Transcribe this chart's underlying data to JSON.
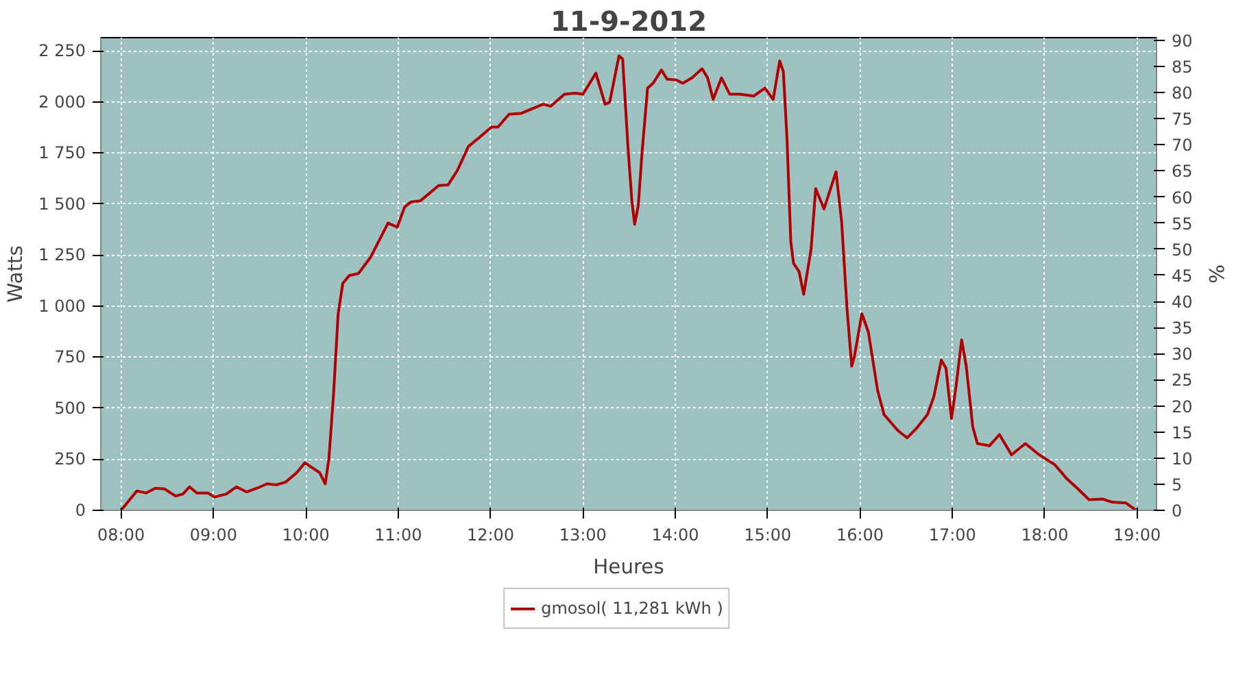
{
  "chart_data": {
    "type": "line",
    "title": "11-9-2012",
    "xlabel": "Heures",
    "ylabel": "Watts",
    "y2label": "%",
    "x": [
      8.0,
      8.17,
      8.27,
      8.37,
      8.47,
      8.59,
      8.67,
      8.74,
      8.82,
      8.94,
      9.01,
      9.14,
      9.25,
      9.36,
      9.48,
      9.58,
      9.68,
      9.78,
      9.9,
      9.99,
      10.15,
      10.21,
      10.25,
      10.3,
      10.35,
      10.4,
      10.47,
      10.57,
      10.7,
      10.79,
      10.89,
      10.99,
      11.07,
      11.14,
      11.24,
      11.44,
      11.54,
      11.64,
      11.76,
      11.88,
      12.01,
      12.08,
      12.2,
      12.33,
      12.43,
      12.57,
      12.65,
      12.8,
      12.92,
      13.0,
      13.14,
      13.24,
      13.29,
      13.39,
      13.43,
      13.49,
      13.53,
      13.56,
      13.6,
      13.64,
      13.7,
      13.76,
      13.85,
      13.91,
      14.01,
      14.08,
      14.18,
      14.29,
      14.35,
      14.41,
      14.5,
      14.59,
      14.7,
      14.85,
      14.97,
      15.06,
      15.13,
      15.17,
      15.21,
      15.25,
      15.28,
      15.34,
      15.39,
      15.47,
      15.52,
      15.61,
      15.74,
      15.8,
      15.86,
      15.91,
      15.94,
      16.02,
      16.09,
      16.19,
      16.26,
      16.41,
      16.51,
      16.61,
      16.73,
      16.8,
      16.88,
      16.93,
      16.99,
      17.04,
      17.1,
      17.15,
      17.22,
      17.27,
      17.4,
      17.51,
      17.64,
      17.79,
      17.94,
      18.11,
      18.24,
      18.36,
      18.48,
      18.63,
      18.73,
      18.88,
      18.99
    ],
    "series": [
      {
        "name": "gmosol( 11,281 kWh )",
        "color": "#b00000",
        "values": [
          0,
          95,
          85,
          108,
          105,
          70,
          80,
          115,
          85,
          85,
          65,
          80,
          115,
          90,
          110,
          130,
          125,
          138,
          184,
          233,
          184,
          130,
          253,
          568,
          963,
          1111,
          1150,
          1160,
          1239,
          1318,
          1407,
          1387,
          1486,
          1511,
          1516,
          1591,
          1594,
          1664,
          1782,
          1827,
          1877,
          1877,
          1940,
          1944,
          1963,
          1989,
          1979,
          2038,
          2043,
          2038,
          2141,
          1989,
          1999,
          2226,
          2210,
          1763,
          1516,
          1401,
          1496,
          1753,
          2068,
          2092,
          2157,
          2112,
          2108,
          2092,
          2118,
          2163,
          2118,
          2013,
          2118,
          2038,
          2038,
          2029,
          2068,
          2013,
          2201,
          2148,
          1812,
          1318,
          1210,
          1170,
          1058,
          1279,
          1575,
          1476,
          1658,
          1417,
          983,
          706,
          756,
          963,
          874,
          588,
          469,
          391,
          355,
          401,
          469,
          558,
          736,
          697,
          450,
          608,
          835,
          706,
          410,
          327,
          316,
          371,
          272,
          327,
          272,
          223,
          154,
          105,
          52,
          55,
          40,
          36,
          0
        ]
      }
    ],
    "xlim": [
      7.78,
      19.21
    ],
    "xticks": [
      {
        "value": 8,
        "label": "08:00"
      },
      {
        "value": 9,
        "label": "09:00"
      },
      {
        "value": 10,
        "label": "10:00"
      },
      {
        "value": 11,
        "label": "11:00"
      },
      {
        "value": 12,
        "label": "12:00"
      },
      {
        "value": 13,
        "label": "13:00"
      },
      {
        "value": 14,
        "label": "14:00"
      },
      {
        "value": 15,
        "label": "15:00"
      },
      {
        "value": 16,
        "label": "16:00"
      },
      {
        "value": 17,
        "label": "17:00"
      },
      {
        "value": 18,
        "label": "18:00"
      },
      {
        "value": 19,
        "label": "19:00"
      }
    ],
    "ylim": [
      0,
      2315
    ],
    "yticks": [
      0,
      250,
      500,
      750,
      {
        "value": 1000,
        "label": "1 000"
      },
      {
        "value": 1250,
        "label": "1 250"
      },
      {
        "value": 1500,
        "label": "1 500"
      },
      {
        "value": 1750,
        "label": "1 750"
      },
      {
        "value": 2000,
        "label": "2 000"
      },
      {
        "value": 2250,
        "label": "2 250"
      }
    ],
    "y2lim": [
      0,
      90.5
    ],
    "y2ticks": [
      0,
      5,
      10,
      15,
      20,
      25,
      30,
      35,
      40,
      45,
      50,
      55,
      60,
      65,
      70,
      75,
      80,
      85,
      90
    ],
    "grid": true,
    "legend": "bottom",
    "line_style": "solid",
    "marker": "none"
  }
}
